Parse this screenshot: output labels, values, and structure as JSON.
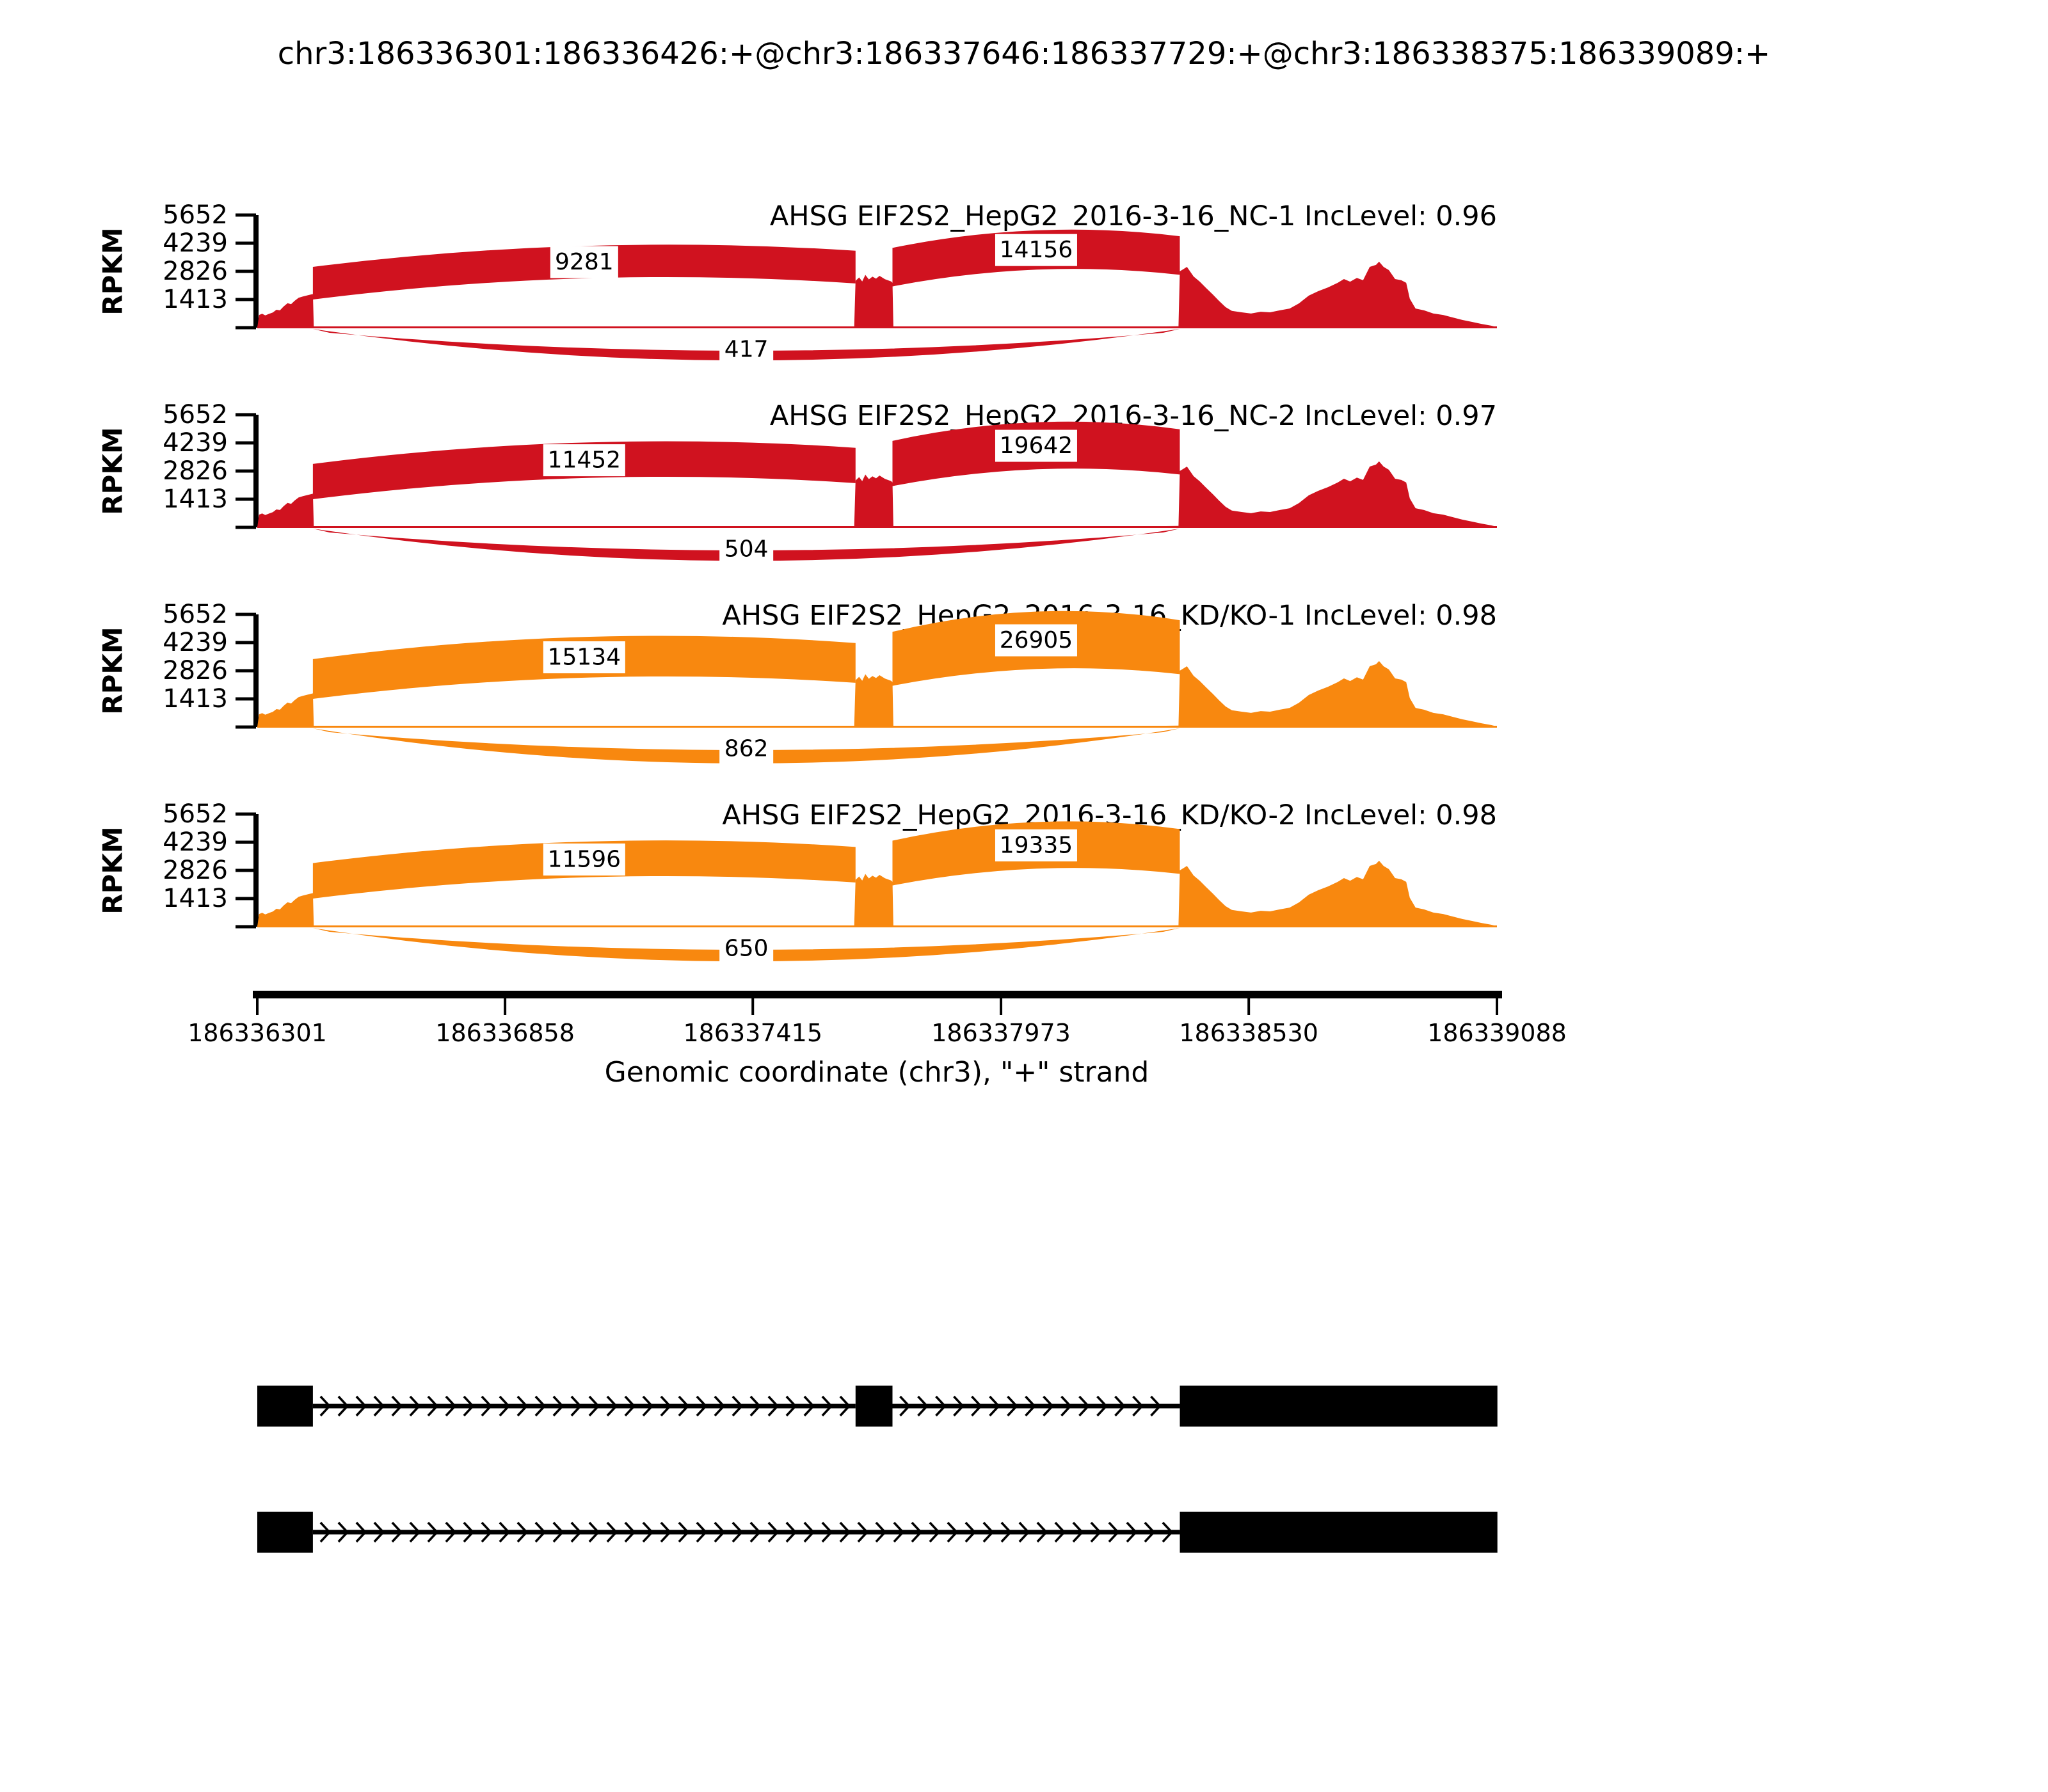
{
  "title": "chr3:186336301:186336426:+@chr3:186337646:186337729:+@chr3:186338375:186339089:+",
  "colors": {
    "nc_red": "#D0121F",
    "kdko_orange": "#F8880F",
    "ink": "#000000",
    "background": "#FFFFFF"
  },
  "chart_data": {
    "type": "area",
    "subtype": "sashimi-splice-junction-plot",
    "gene": "AHSG",
    "region": "chr3:186336301-186339088",
    "strand": "+",
    "x_axis": {
      "label": "Genomic coordinate (chr3), \"+\" strand",
      "start": 186336301,
      "end": 186339088,
      "tick_coords": [
        186336301,
        186336858,
        186337415,
        186337973,
        186338530,
        186339088
      ],
      "tick_labels": [
        "186336301",
        "186336858",
        "186337415",
        "186337973",
        "186338530",
        "186339088"
      ]
    },
    "y_axis": {
      "label": "RPKM",
      "ticks": [
        "5652",
        "4239",
        "2826",
        "1413"
      ],
      "tick_values": [
        5652,
        4239,
        2826,
        1413
      ],
      "max": 5652
    },
    "tracks": [
      {
        "title": "AHSG EIF2S2_HepG2_2016-3-16_NC-1 IncLevel: 0.96",
        "sample": "EIF2S2_HepG2_2016-3-16_NC-1",
        "group": "NC",
        "inc_level": 0.96,
        "color": "#D0121F",
        "junctions": [
          {
            "type": "inclusion",
            "from": 186336426,
            "to": 186337646,
            "count": 9281
          },
          {
            "type": "inclusion",
            "from": 186337729,
            "to": 186338375,
            "count": 14156
          },
          {
            "type": "skipping",
            "from": 186336426,
            "to": 186338375,
            "count": 417
          }
        ]
      },
      {
        "title": "AHSG EIF2S2_HepG2_2016-3-16_NC-2 IncLevel: 0.97",
        "sample": "EIF2S2_HepG2_2016-3-16_NC-2",
        "group": "NC",
        "inc_level": 0.97,
        "color": "#D0121F",
        "junctions": [
          {
            "type": "inclusion",
            "from": 186336426,
            "to": 186337646,
            "count": 11452
          },
          {
            "type": "inclusion",
            "from": 186337729,
            "to": 186338375,
            "count": 19642
          },
          {
            "type": "skipping",
            "from": 186336426,
            "to": 186338375,
            "count": 504
          }
        ]
      },
      {
        "title": "AHSG EIF2S2_HepG2_2016-3-16_KD/KO-1 IncLevel: 0.98",
        "sample": "EIF2S2_HepG2_2016-3-16_KD/KO-1",
        "group": "KD/KO",
        "inc_level": 0.98,
        "color": "#F8880F",
        "junctions": [
          {
            "type": "inclusion",
            "from": 186336426,
            "to": 186337646,
            "count": 15134
          },
          {
            "type": "inclusion",
            "from": 186337729,
            "to": 186338375,
            "count": 26905
          },
          {
            "type": "skipping",
            "from": 186336426,
            "to": 186338375,
            "count": 862
          }
        ]
      },
      {
        "title": "AHSG EIF2S2_HepG2_2016-3-16_KD/KO-2 IncLevel: 0.98",
        "sample": "EIF2S2_HepG2_2016-3-16_KD/KO-2",
        "group": "KD/KO",
        "inc_level": 0.98,
        "color": "#F8880F",
        "junctions": [
          {
            "type": "inclusion",
            "from": 186336426,
            "to": 186337646,
            "count": 11596
          },
          {
            "type": "inclusion",
            "from": 186337729,
            "to": 186338375,
            "count": 19335
          },
          {
            "type": "skipping",
            "from": 186336426,
            "to": 186338375,
            "count": 650
          }
        ]
      }
    ],
    "coverage_profile": [
      [
        186336301,
        0
      ],
      [
        186336305,
        640
      ],
      [
        186336312,
        700
      ],
      [
        186336319,
        620
      ],
      [
        186336327,
        690
      ],
      [
        186336336,
        760
      ],
      [
        186336344,
        900
      ],
      [
        186336352,
        870
      ],
      [
        186336360,
        1060
      ],
      [
        186336369,
        1230
      ],
      [
        186336377,
        1180
      ],
      [
        186336385,
        1350
      ],
      [
        186336394,
        1500
      ],
      [
        186336403,
        1560
      ],
      [
        186336413,
        1620
      ],
      [
        186336424,
        1680
      ],
      [
        186336426,
        1690
      ],
      [
        186336428,
        60
      ],
      [
        186336500,
        48
      ],
      [
        186336700,
        40
      ],
      [
        186336900,
        55
      ],
      [
        186337100,
        42
      ],
      [
        186337300,
        48
      ],
      [
        186337500,
        45
      ],
      [
        186337643,
        60
      ],
      [
        186337646,
        2350
      ],
      [
        186337654,
        2520
      ],
      [
        186337661,
        2320
      ],
      [
        186337668,
        2650
      ],
      [
        186337676,
        2420
      ],
      [
        186337684,
        2560
      ],
      [
        186337692,
        2460
      ],
      [
        186337700,
        2600
      ],
      [
        186337712,
        2430
      ],
      [
        186337726,
        2320
      ],
      [
        186337729,
        2250
      ],
      [
        186337731,
        60
      ],
      [
        186337800,
        50
      ],
      [
        186338000,
        42
      ],
      [
        186338150,
        46
      ],
      [
        186338300,
        50
      ],
      [
        186338372,
        70
      ],
      [
        186338375,
        2830
      ],
      [
        186338384,
        2950
      ],
      [
        186338391,
        3050
      ],
      [
        186338406,
        2570
      ],
      [
        186338420,
        2310
      ],
      [
        186338434,
        1990
      ],
      [
        186338449,
        1670
      ],
      [
        186338463,
        1350
      ],
      [
        186338478,
        1030
      ],
      [
        186338492,
        840
      ],
      [
        186338514,
        770
      ],
      [
        186338535,
        710
      ],
      [
        186338557,
        800
      ],
      [
        186338578,
        770
      ],
      [
        186338600,
        870
      ],
      [
        186338622,
        960
      ],
      [
        186338643,
        1220
      ],
      [
        186338665,
        1610
      ],
      [
        186338686,
        1830
      ],
      [
        186338708,
        2020
      ],
      [
        186338730,
        2250
      ],
      [
        186338744,
        2440
      ],
      [
        186338758,
        2310
      ],
      [
        186338773,
        2500
      ],
      [
        186338787,
        2380
      ],
      [
        186338802,
        3050
      ],
      [
        186338816,
        3150
      ],
      [
        186338823,
        3310
      ],
      [
        186338833,
        3050
      ],
      [
        186338845,
        2890
      ],
      [
        186338859,
        2440
      ],
      [
        186338873,
        2380
      ],
      [
        186338884,
        2250
      ],
      [
        186338892,
        1450
      ],
      [
        186338905,
        960
      ],
      [
        186338924,
        870
      ],
      [
        186338945,
        710
      ],
      [
        186338967,
        640
      ],
      [
        186338989,
        510
      ],
      [
        186339010,
        390
      ],
      [
        186339032,
        290
      ],
      [
        186339053,
        190
      ],
      [
        186339075,
        100
      ],
      [
        186339088,
        30
      ]
    ],
    "isoforms": [
      {
        "name": "inclusion-isoform",
        "exons": [
          [
            186336301,
            186336426
          ],
          [
            186337646,
            186337729
          ],
          [
            186338375,
            186339089
          ]
        ]
      },
      {
        "name": "skipping-isoform",
        "exons": [
          [
            186336301,
            186336426
          ],
          [
            186338375,
            186339089
          ]
        ]
      }
    ]
  }
}
